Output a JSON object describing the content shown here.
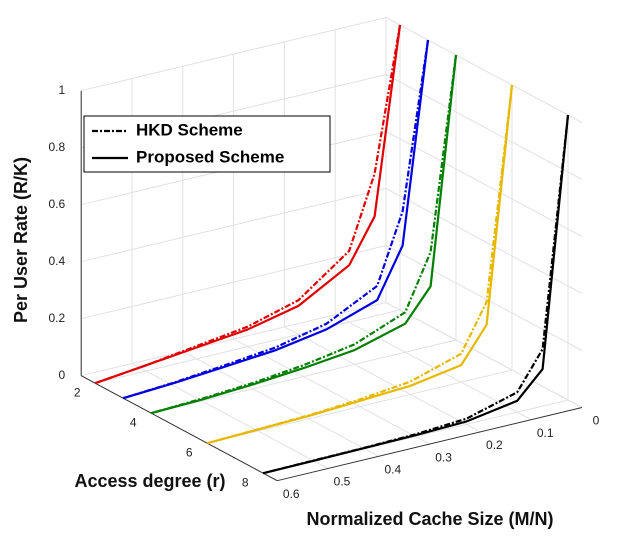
{
  "chart_data": {
    "type": "line3d",
    "xlabel": "Normalized Cache Size (M/N)",
    "ylabel": "Access degree (r)",
    "zlabel": "Per User Rate (R/K)",
    "xlim": [
      0,
      0.6
    ],
    "xticks": [
      0,
      0.1,
      0.2,
      0.3,
      0.4,
      0.5,
      0.6
    ],
    "ylim": [
      1.5,
      8.5
    ],
    "yticks": [
      2,
      4,
      6,
      8
    ],
    "zlim": [
      0,
      1
    ],
    "zticks": [
      0,
      0.2,
      0.4,
      0.6,
      0.8,
      1
    ],
    "grid": true,
    "legend": [
      {
        "label": "HKD Scheme",
        "dash": true
      },
      {
        "label": "Proposed Scheme",
        "dash": false
      }
    ],
    "x": [
      0,
      0.05,
      0.1,
      0.2,
      0.3,
      0.4,
      0.5,
      0.6
    ],
    "series": [
      {
        "r": 2,
        "color": "#e00000",
        "hkd": [
          1,
          0.5,
          0.25,
          0.12,
          0.07,
          0.045,
          0.02,
          0
        ],
        "proposed": [
          1,
          0.35,
          0.2,
          0.1,
          0.06,
          0.04,
          0.02,
          0
        ]
      },
      {
        "r": 3,
        "color": "#0000e0",
        "hkd": [
          1,
          0.42,
          0.18,
          0.09,
          0.05,
          0.03,
          0.012,
          0
        ],
        "proposed": [
          1,
          0.3,
          0.13,
          0.07,
          0.04,
          0.025,
          0.01,
          0
        ]
      },
      {
        "r": 4,
        "color": "#007f00",
        "hkd": [
          1,
          0.33,
          0.14,
          0.07,
          0.04,
          0.02,
          0.008,
          0
        ],
        "proposed": [
          1,
          0.21,
          0.1,
          0.05,
          0.03,
          0.015,
          0.005,
          0
        ]
      },
      {
        "r": 6,
        "color": "#e6b800",
        "hkd": [
          1,
          0.26,
          0.1,
          0.045,
          0.025,
          0.012,
          0.006,
          0
        ],
        "proposed": [
          1,
          0.18,
          0.06,
          0.03,
          0.02,
          0.01,
          0.005,
          0
        ]
      },
      {
        "r": 8,
        "color": "#000000",
        "hkd": [
          1,
          0.2,
          0.07,
          0.02,
          0.008,
          0.004,
          0.002,
          0
        ],
        "proposed": [
          1,
          0.13,
          0.04,
          0.01,
          0.005,
          0.003,
          0.001,
          0
        ]
      }
    ]
  }
}
